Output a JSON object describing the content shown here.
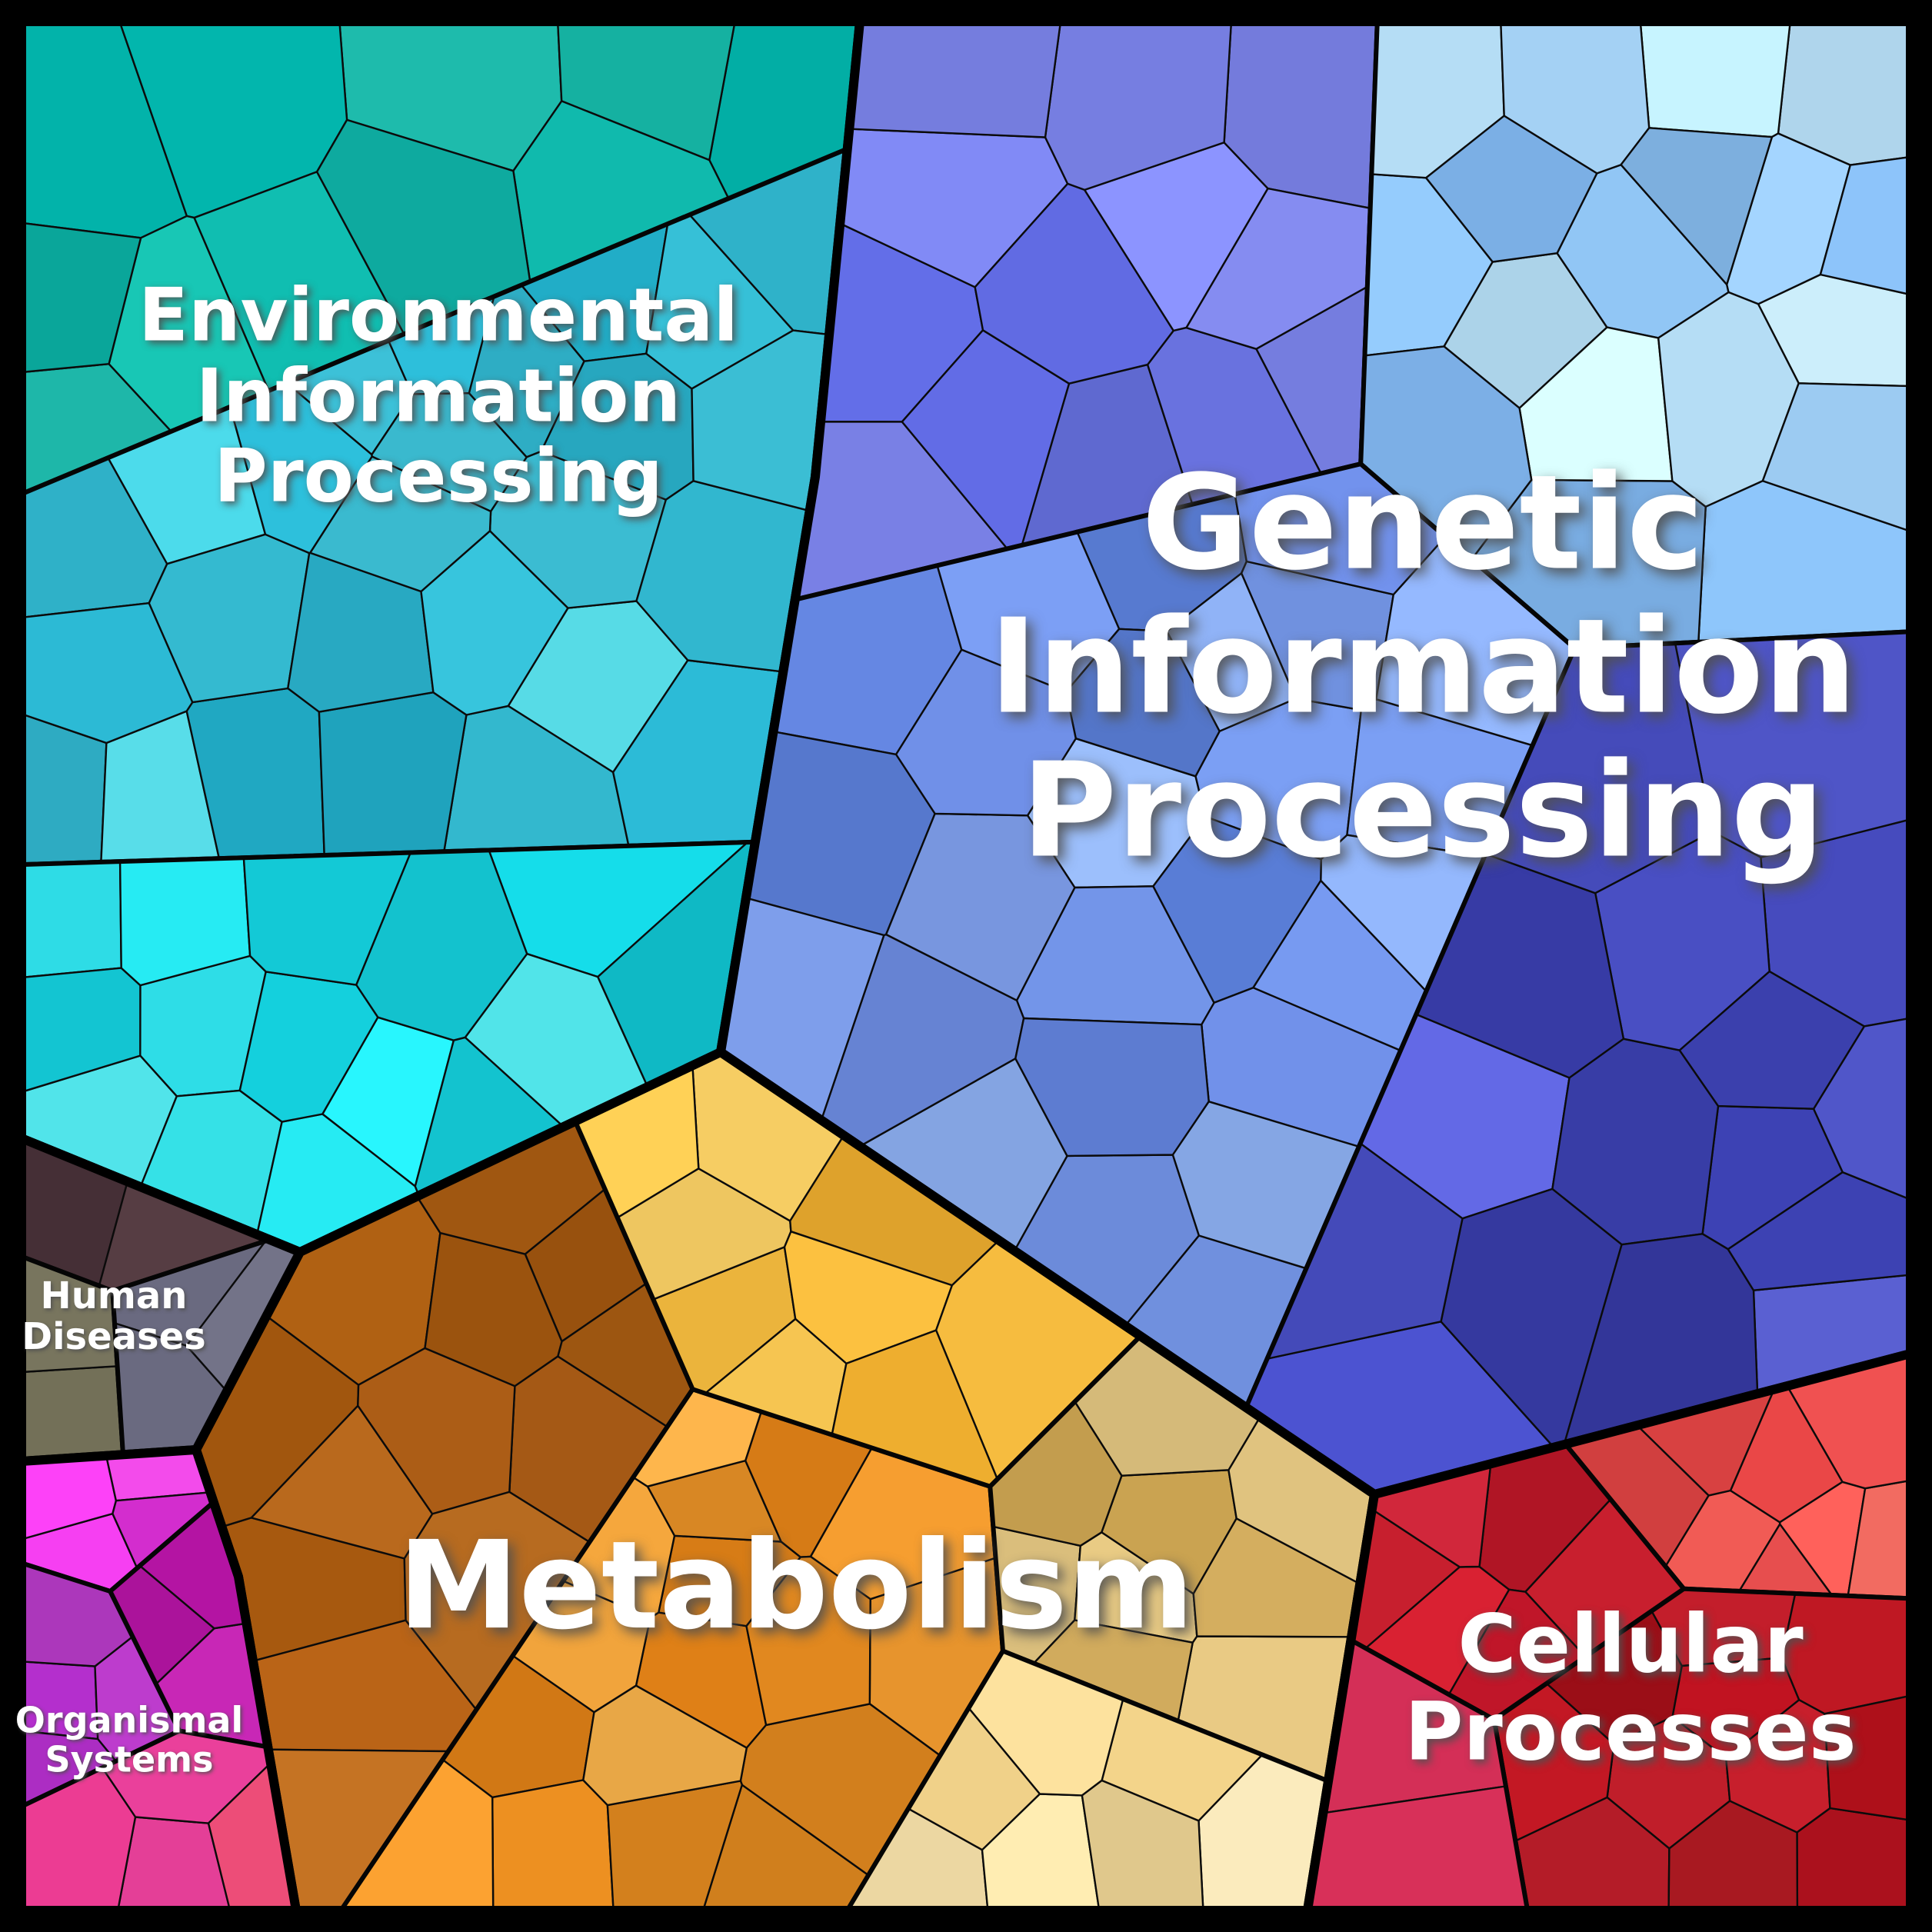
{
  "chart_data": {
    "type": "voronoi-treemap",
    "description": "Hierarchical Voronoi treemap of functional categories; polygonal mosaic cells nested in sub-groups nested in six labeled top-level regions, separated by black borders of decreasing thickness.",
    "legend_position": "none",
    "grid": false,
    "background_color": "#000000",
    "label_color": "#ffffff",
    "regions": [
      {
        "id": "environmental-information-processing",
        "label": "Environmental Information Processing",
        "color": "#2ab5cf",
        "approx_area_fraction": 0.21,
        "location": "top-left",
        "palettes": [
          [
            "#0fb2a6",
            "#16baa9",
            "#02afa6",
            "#1fbfb0",
            "#0aa89c"
          ],
          [
            "#2ab2cc",
            "#36c1d8",
            "#49d2e2",
            "#27a4c2",
            "#58dde9",
            "#3cc0d6",
            "#31b8d0",
            "#21adc8"
          ],
          [
            "#1bdde8",
            "#25e6ee",
            "#14cfdc",
            "#38ecf2",
            "#10c2cf",
            "#55eef4",
            "#2fe2ec"
          ]
        ]
      },
      {
        "id": "genetic-information-processing",
        "label": "Genetic Information Processing",
        "color": "#6f8fe0",
        "approx_area_fraction": 0.34,
        "location": "top-right",
        "palettes": [
          [
            "#6b74e3",
            "#7a82e8",
            "#5c66d8",
            "#8289ec",
            "#6670de"
          ],
          [
            "#8fc3f2",
            "#a6d4f7",
            "#b9e2fa",
            "#7db1e8",
            "#cdeffc",
            "#9ecdf5",
            "#86bbee"
          ],
          [
            "#6f8fe0",
            "#7d9ce8",
            "#5f7fd6",
            "#8badee",
            "#6a88dc",
            "#95b6f0",
            "#577ad0",
            "#7394e4"
          ],
          [
            "#474dc2",
            "#5157cc",
            "#3c41b0",
            "#5c62d6",
            "#3539a0",
            "#4a50c6"
          ]
        ]
      },
      {
        "id": "metabolism",
        "label": "Metabolism",
        "color": "#e8952e",
        "approx_area_fraction": 0.27,
        "location": "bottom-center",
        "palettes": [
          [
            "#a85c12",
            "#b4661c",
            "#9c530e",
            "#c07022",
            "#8f4a0c",
            "#b05f16"
          ],
          [
            "#e0881f",
            "#ec982e",
            "#f2a53c",
            "#d87c16",
            "#f7b14a",
            "#e89127"
          ],
          [
            "#f3ba3e",
            "#f7c651",
            "#eeae2f",
            "#fbd165"
          ],
          [
            "#c9a55a",
            "#d5b46c",
            "#bf9a4d",
            "#e0c37f"
          ],
          [
            "#ecd394",
            "#f2dda6",
            "#e4c782",
            "#f7e7ba"
          ]
        ]
      },
      {
        "id": "cellular-processes",
        "label": "Cellular Processes",
        "color": "#c01820",
        "approx_area_fraction": 0.1,
        "location": "bottom-right",
        "palettes": [
          [
            "#e94f4f",
            "#f25b55",
            "#dd4343",
            "#ef6a60",
            "#e45a52"
          ],
          [
            "#ca1e33",
            "#d6283c",
            "#bd1628",
            "#d02030"
          ],
          [
            "#b5121f",
            "#a30f18",
            "#c21824",
            "#960b12",
            "#ad1a22",
            "#bb1d29"
          ],
          [
            "#d63058",
            "#e03b62"
          ]
        ]
      },
      {
        "id": "human-diseases",
        "label": "Human Diseases",
        "color": "#65657a",
        "approx_area_fraction": 0.03,
        "location": "left-middle",
        "palettes": [
          [
            "#4a333a",
            "#523a40"
          ],
          [
            "#6f6c55",
            "#7a7760"
          ],
          [
            "#65657a",
            "#6e6e82",
            "#5c5c6e"
          ]
        ]
      },
      {
        "id": "organismal-systems",
        "label": "Organismal Systems",
        "color": "#c92fc0",
        "approx_area_fraction": 0.05,
        "location": "bottom-left",
        "palettes": [
          [
            "#ea3ce6",
            "#f04ae8",
            "#dd2fd8"
          ],
          [
            "#a92cc0",
            "#b83bc8",
            "#9a2bb1"
          ],
          [
            "#c11bb0",
            "#cf28bc",
            "#b514a4"
          ],
          [
            "#f0429f",
            "#e63b8f",
            "#e84b75"
          ]
        ]
      }
    ]
  }
}
